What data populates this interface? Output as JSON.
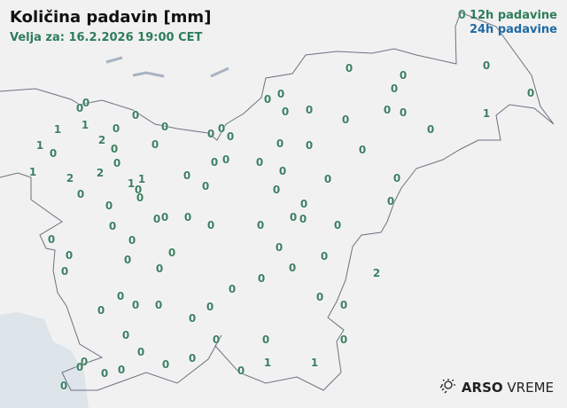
{
  "header": {
    "title": "Količina padavin [mm]",
    "valid_for": "Velja za: 16.2.2026 19:00 CET"
  },
  "legend": {
    "sample_value": "0",
    "label_12h": "12h padavine",
    "label_24h": "24h padavine",
    "color_12h": "#2e7d5b",
    "color_24h": "#1f6aa5"
  },
  "brand": {
    "name_bold": "ARSO",
    "name_light": "VREME",
    "icon": "sun-rain-icon"
  },
  "stations": [
    "0",
    "0",
    "1",
    "1",
    "0",
    "0",
    "0",
    "1",
    "0",
    "2",
    "0",
    "0",
    "0",
    "1",
    "2",
    "2",
    "1",
    "1",
    "0",
    "0",
    "0",
    "0",
    "0",
    "0",
    "0",
    "0",
    "0",
    "0",
    "0",
    "0",
    "0",
    "0",
    "0",
    "0",
    "0",
    "0",
    "0",
    "0",
    "0",
    "0",
    "0",
    "0",
    "0",
    "0",
    "0",
    "0",
    "0",
    "0",
    "1",
    "0",
    "0",
    "0",
    "0",
    "0",
    "0",
    "0",
    "0",
    "0",
    "0",
    "0",
    "0",
    "0",
    "0",
    "0",
    "0",
    "0",
    "0",
    "0",
    "0",
    "0",
    "0",
    "0",
    "0",
    "2",
    "0",
    "0",
    "0",
    "0",
    "0",
    "0",
    "0",
    "0",
    "0",
    "0",
    "0",
    "0",
    "0",
    "0",
    "0",
    "0",
    "0",
    "0",
    "0",
    "0",
    "0",
    "0",
    "0",
    "1",
    "1",
    "0",
    "0"
  ]
}
